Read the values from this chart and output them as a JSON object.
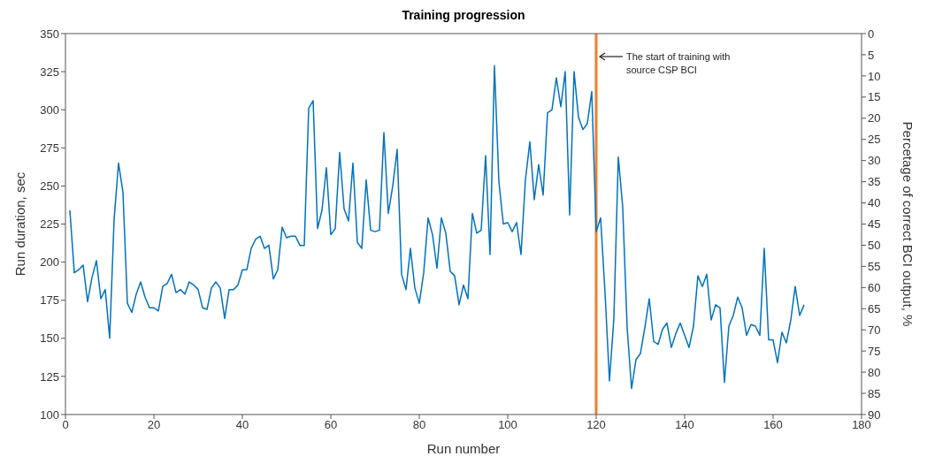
{
  "chart_data": {
    "type": "line",
    "title": "Training progression",
    "xlabel": "Run number",
    "ylabel": "Run duration, sec",
    "y2label": "Percetage of correct BCI output, %",
    "x": [
      1,
      2,
      3,
      4,
      5,
      6,
      7,
      8,
      9,
      10,
      11,
      12,
      13,
      14,
      15,
      16,
      17,
      18,
      19,
      20,
      21,
      22,
      23,
      24,
      25,
      26,
      27,
      28,
      29,
      30,
      31,
      32,
      33,
      34,
      35,
      36,
      37,
      38,
      39,
      40,
      41,
      42,
      43,
      44,
      45,
      46,
      47,
      48,
      49,
      50,
      51,
      52,
      53,
      54,
      55,
      56,
      57,
      58,
      59,
      60,
      61,
      62,
      63,
      64,
      65,
      66,
      67,
      68,
      69,
      70,
      71,
      72,
      73,
      74,
      75,
      76,
      77,
      78,
      79,
      80,
      81,
      82,
      83,
      84,
      85,
      86,
      87,
      88,
      89,
      90,
      91,
      92,
      93,
      94,
      95,
      96,
      97,
      98,
      99,
      100,
      101,
      102,
      103,
      104,
      105,
      106,
      107,
      108,
      109,
      110,
      111,
      112,
      113,
      114,
      115,
      116,
      117,
      118,
      119,
      120,
      121,
      122,
      123,
      124,
      125,
      126,
      127,
      128,
      129,
      130,
      131,
      132,
      133,
      134,
      135,
      136,
      137,
      138,
      139,
      140,
      141,
      142,
      143,
      144,
      145,
      146,
      147,
      148,
      149,
      150,
      151,
      152,
      153,
      154,
      155,
      156,
      157,
      158,
      159,
      160,
      161,
      162,
      163,
      164,
      165,
      166,
      167
    ],
    "series": [
      {
        "color": "#0072bd",
        "values": [
          234,
          193,
          195,
          198,
          174,
          190,
          201,
          176,
          182,
          150,
          228,
          265,
          246,
          173,
          167,
          179,
          187,
          177,
          170,
          170,
          168,
          184,
          186,
          192,
          180,
          182,
          179,
          187,
          185,
          182,
          170,
          169,
          183,
          187,
          183,
          163,
          182,
          182,
          185,
          195,
          195,
          209,
          215,
          217,
          209,
          211,
          189,
          195,
          223,
          216,
          217,
          217,
          211,
          211,
          301,
          306,
          222,
          234,
          262,
          218,
          222,
          272,
          235,
          227,
          265,
          213,
          209,
          254,
          221,
          220,
          221,
          285,
          232,
          250,
          274,
          192,
          182,
          209,
          183,
          173,
          193,
          229,
          218,
          196,
          229,
          219,
          194,
          191,
          172,
          185,
          176,
          232,
          219,
          221,
          270,
          205,
          329,
          253,
          225,
          226,
          220,
          226,
          205,
          254,
          279,
          241,
          264,
          244,
          298,
          300,
          321,
          302,
          325,
          231,
          325,
          295,
          287,
          291,
          312,
          220,
          229,
          180,
          122,
          163,
          269,
          236,
          157,
          117,
          136,
          140,
          157,
          176,
          148,
          146,
          156,
          160,
          144,
          153,
          160,
          152,
          144,
          158,
          191,
          184,
          192,
          162,
          172,
          170,
          121,
          158,
          165,
          177,
          170,
          152,
          159,
          158,
          152,
          209,
          149,
          149,
          134,
          154,
          147,
          162,
          184,
          165,
          172
        ]
      }
    ],
    "xlim": [
      0,
      180
    ],
    "xticks": [
      0,
      20,
      40,
      60,
      80,
      100,
      120,
      140,
      160,
      180
    ],
    "ylim": [
      100,
      350
    ],
    "yticks": [
      100,
      125,
      150,
      175,
      200,
      225,
      250,
      275,
      300,
      325,
      350
    ],
    "y2lim": [
      90,
      0
    ],
    "y2ticks": [
      0,
      5,
      10,
      15,
      20,
      25,
      30,
      35,
      40,
      45,
      50,
      55,
      60,
      65,
      70,
      75,
      80,
      85,
      90
    ],
    "ref_lines": [
      {
        "axis": "x",
        "value": 120,
        "label": "The start of training with source CSP BCI",
        "color": "#f07f2e"
      }
    ],
    "grid": false,
    "legend": false,
    "marker": "none",
    "line_style": "solid"
  }
}
